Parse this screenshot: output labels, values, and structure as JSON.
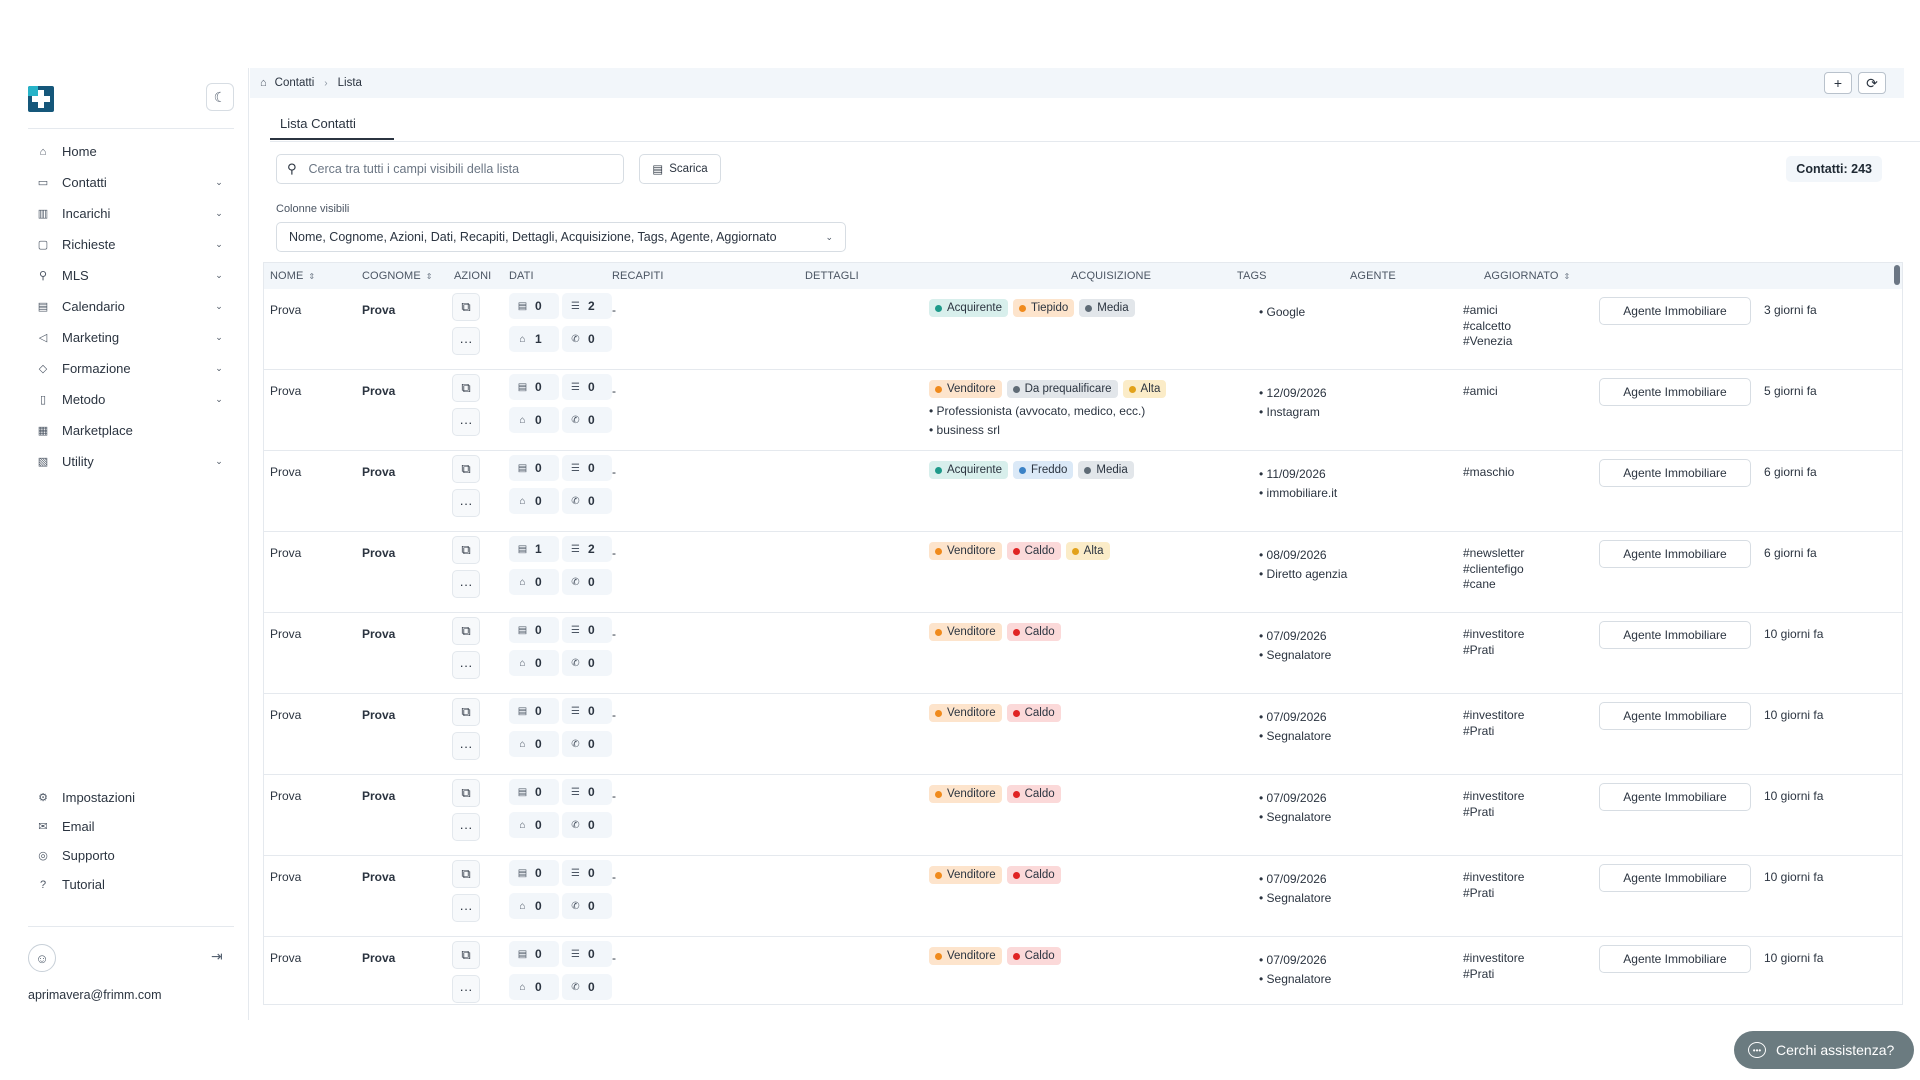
{
  "sidebar": {
    "nav": [
      {
        "label": "Home",
        "icon": "home-icon",
        "glyph": "⌂",
        "chevron": false
      },
      {
        "label": "Contatti",
        "icon": "contacts-icon",
        "glyph": "▭",
        "chevron": true
      },
      {
        "label": "Incarichi",
        "icon": "chart-icon",
        "glyph": "▥",
        "chevron": true
      },
      {
        "label": "Richieste",
        "icon": "requests-icon",
        "glyph": "▢",
        "chevron": true
      },
      {
        "label": "MLS",
        "icon": "search-icon",
        "glyph": "⚲",
        "chevron": true
      },
      {
        "label": "Calendario",
        "icon": "calendar-icon",
        "glyph": "▤",
        "chevron": true
      },
      {
        "label": "Marketing",
        "icon": "megaphone-icon",
        "glyph": "◁",
        "chevron": true
      },
      {
        "label": "Formazione",
        "icon": "graduation-icon",
        "glyph": "◇",
        "chevron": true
      },
      {
        "label": "Metodo",
        "icon": "book-icon",
        "glyph": "▯",
        "chevron": true
      },
      {
        "label": "Marketplace",
        "icon": "store-icon",
        "glyph": "▦",
        "chevron": false
      },
      {
        "label": "Utility",
        "icon": "tools-icon",
        "glyph": "▧",
        "chevron": true
      }
    ],
    "bottom_nav": [
      {
        "label": "Impostazioni",
        "icon": "gear-icon",
        "glyph": "⚙"
      },
      {
        "label": "Email",
        "icon": "mail-icon",
        "glyph": "✉"
      },
      {
        "label": "Supporto",
        "icon": "support-icon",
        "glyph": "◎"
      },
      {
        "label": "Tutorial",
        "icon": "help-circle-icon",
        "glyph": "?"
      }
    ],
    "user_email": "aprimavera@frimm.com"
  },
  "topbar": {
    "breadcrumb": [
      "Contatti",
      "Lista"
    ]
  },
  "tab": {
    "label": "Lista Contatti"
  },
  "search": {
    "placeholder": "Cerca tra tutti i campi visibili della lista"
  },
  "download_label": "Scarica",
  "count_label": "Contatti: 243",
  "columns": {
    "label": "Colonne visibili",
    "value": "Nome, Cognome, Azioni, Dati, Recapiti, Dettagli, Acquisizione, Tags, Agente, Aggiornato"
  },
  "table": {
    "headers": [
      {
        "label": "Nome",
        "sortable": true
      },
      {
        "label": "Cognome",
        "sortable": true
      },
      {
        "label": "Azioni",
        "sortable": false
      },
      {
        "label": "Dati",
        "sortable": false
      },
      {
        "label": "Recapiti",
        "sortable": false
      },
      {
        "label": "Dettagli",
        "sortable": false
      },
      {
        "label": "Acquisizione",
        "sortable": false
      },
      {
        "label": "Tags",
        "sortable": false
      },
      {
        "label": "Agente",
        "sortable": false
      },
      {
        "label": "Aggiornato",
        "sortable": true
      }
    ],
    "rows": [
      {
        "nome": "Prova",
        "cognome": "Prova",
        "stats": [
          0,
          2,
          1,
          0
        ],
        "recapiti": "-",
        "badges": [
          {
            "text": "Acquirente",
            "type": "teal"
          },
          {
            "text": "Tiepido",
            "type": "orange"
          },
          {
            "text": "Media",
            "type": "gray"
          }
        ],
        "details": [],
        "acquisizione": [
          "• Google"
        ],
        "tags": [
          "#amici",
          "#calcetto",
          "#Venezia"
        ],
        "agente": "Agente Immobiliare",
        "aggiornato": "3 giorni fa"
      },
      {
        "nome": "Prova",
        "cognome": "Prova",
        "stats": [
          0,
          0,
          0,
          0
        ],
        "recapiti": "-",
        "badges": [
          {
            "text": "Venditore",
            "type": "orange"
          },
          {
            "text": "Da prequalificare",
            "type": "gray"
          },
          {
            "text": "Alta",
            "type": "amber"
          }
        ],
        "details": [
          "• Professionista (avvocato, medico, ecc.)",
          "• business srl"
        ],
        "acquisizione": [
          "• 12/09/2026",
          "• Instagram"
        ],
        "tags": [
          "#amici"
        ],
        "agente": "Agente Immobiliare",
        "aggiornato": "5 giorni fa"
      },
      {
        "nome": "Prova",
        "cognome": "Prova",
        "stats": [
          0,
          0,
          0,
          0
        ],
        "recapiti": "-",
        "badges": [
          {
            "text": "Acquirente",
            "type": "teal"
          },
          {
            "text": "Freddo",
            "type": "blue"
          },
          {
            "text": "Media",
            "type": "gray"
          }
        ],
        "details": [],
        "acquisizione": [
          "• 11/09/2026",
          "• immobiliare.it"
        ],
        "tags": [
          "#maschio"
        ],
        "agente": "Agente Immobiliare",
        "aggiornato": "6 giorni fa"
      },
      {
        "nome": "Prova",
        "cognome": "Prova",
        "stats": [
          1,
          2,
          0,
          0
        ],
        "recapiti": "-",
        "badges": [
          {
            "text": "Venditore",
            "type": "orange"
          },
          {
            "text": "Caldo",
            "type": "red"
          },
          {
            "text": "Alta",
            "type": "amber"
          }
        ],
        "details": [],
        "acquisizione": [
          "• 08/09/2026",
          "• Diretto agenzia"
        ],
        "tags": [
          "#newsletter",
          "#clientefigo",
          "#cane"
        ],
        "agente": "Agente Immobiliare",
        "aggiornato": "6 giorni fa"
      },
      {
        "nome": "Prova",
        "cognome": "Prova",
        "stats": [
          0,
          0,
          0,
          0
        ],
        "recapiti": "-",
        "badges": [
          {
            "text": "Venditore",
            "type": "orange"
          },
          {
            "text": "Caldo",
            "type": "red"
          }
        ],
        "details": [],
        "acquisizione": [
          "• 07/09/2026",
          "• Segnalatore"
        ],
        "tags": [
          "#investitore",
          "#Prati"
        ],
        "agente": "Agente Immobiliare",
        "aggiornato": "10 giorni fa"
      },
      {
        "nome": "Prova",
        "cognome": "Prova",
        "stats": [
          0,
          0,
          0,
          0
        ],
        "recapiti": "-",
        "badges": [
          {
            "text": "Venditore",
            "type": "orange"
          },
          {
            "text": "Caldo",
            "type": "red"
          }
        ],
        "details": [],
        "acquisizione": [
          "• 07/09/2026",
          "• Segnalatore"
        ],
        "tags": [
          "#investitore",
          "#Prati"
        ],
        "agente": "Agente Immobiliare",
        "aggiornato": "10 giorni fa"
      },
      {
        "nome": "Prova",
        "cognome": "Prova",
        "stats": [
          0,
          0,
          0,
          0
        ],
        "recapiti": "-",
        "badges": [
          {
            "text": "Venditore",
            "type": "orange"
          },
          {
            "text": "Caldo",
            "type": "red"
          }
        ],
        "details": [],
        "acquisizione": [
          "• 07/09/2026",
          "• Segnalatore"
        ],
        "tags": [
          "#investitore",
          "#Prati"
        ],
        "agente": "Agente Immobiliare",
        "aggiornato": "10 giorni fa"
      },
      {
        "nome": "Prova",
        "cognome": "Prova",
        "stats": [
          0,
          0,
          0,
          0
        ],
        "recapiti": "-",
        "badges": [
          {
            "text": "Venditore",
            "type": "orange"
          },
          {
            "text": "Caldo",
            "type": "red"
          }
        ],
        "details": [],
        "acquisizione": [
          "• 07/09/2026",
          "• Segnalatore"
        ],
        "tags": [
          "#investitore",
          "#Prati"
        ],
        "agente": "Agente Immobiliare",
        "aggiornato": "10 giorni fa"
      },
      {
        "nome": "Prova",
        "cognome": "Prova",
        "stats": [
          0,
          0,
          0,
          0
        ],
        "recapiti": "-",
        "badges": [
          {
            "text": "Venditore",
            "type": "orange"
          },
          {
            "text": "Caldo",
            "type": "red"
          }
        ],
        "details": [],
        "acquisizione": [
          "• 07/09/2026",
          "• Segnalatore"
        ],
        "tags": [
          "#investitore",
          "#Prati"
        ],
        "agente": "Agente Immobiliare",
        "aggiornato": "10 giorni fa"
      }
    ]
  },
  "badge_colors": {
    "teal": {
      "bg": "#d8efec",
      "dot": "#1e9a8a"
    },
    "orange": {
      "bg": "#fde4cc",
      "dot": "#f08a1c"
    },
    "gray": {
      "bg": "#e2e6ea",
      "dot": "#5f6b76"
    },
    "amber": {
      "bg": "#fbecc8",
      "dot": "#e2a21a"
    },
    "red": {
      "bg": "#fbd9d9",
      "dot": "#e02424"
    },
    "blue": {
      "bg": "#dbe9f7",
      "dot": "#3b82c6"
    }
  },
  "help": {
    "label": "Cerchi assistenza?"
  }
}
